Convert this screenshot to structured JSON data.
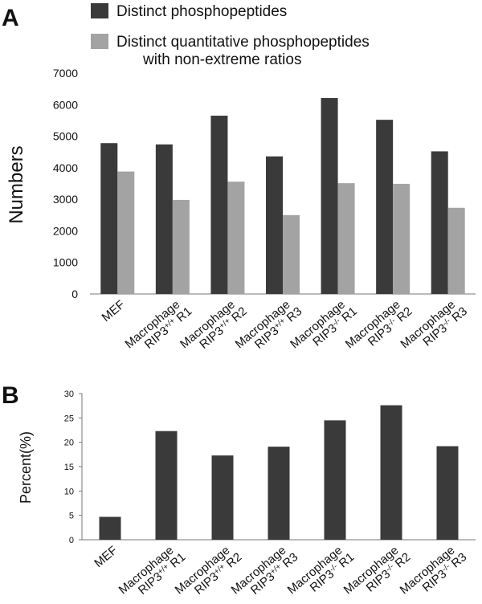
{
  "chart_data": [
    {
      "panel": "A",
      "type": "bar",
      "ylabel": "Numbers",
      "ylim": [
        0,
        7000
      ],
      "yticks": [
        0,
        1000,
        2000,
        3000,
        4000,
        5000,
        6000,
        7000
      ],
      "legend_position": "top",
      "grid": false,
      "categories": [
        {
          "line1": "MEF",
          "line2": "",
          "sup": "",
          "rep": ""
        },
        {
          "line1": "Macrophage",
          "line2": "RIP3",
          "sup": "+/+",
          "rep": " R1"
        },
        {
          "line1": "Macrophage",
          "line2": "RIP3",
          "sup": "+/+",
          "rep": " R2"
        },
        {
          "line1": "Macrophage",
          "line2": "RIP3",
          "sup": "+/+",
          "rep": " R3"
        },
        {
          "line1": "Macrophage",
          "line2": "RIP3",
          "sup": "-/-",
          "rep": " R1"
        },
        {
          "line1": "Macrophage",
          "line2": "RIP3",
          "sup": "-/-",
          "rep": " R2"
        },
        {
          "line1": "Macrophage",
          "line2": "RIP3",
          "sup": "-/-",
          "rep": " R3"
        }
      ],
      "series": [
        {
          "name": "Distinct phosphopeptides",
          "color": "#3a3a3a",
          "values": [
            4780,
            4740,
            5650,
            4360,
            6210,
            5520,
            4520
          ]
        },
        {
          "name_line1": "Distinct quantitative phosphopeptides",
          "name_line2": "with non-extreme ratios",
          "color": "#a3a3a3",
          "values": [
            3880,
            2980,
            3560,
            2500,
            3510,
            3490,
            2730
          ]
        }
      ]
    },
    {
      "panel": "B",
      "type": "bar",
      "ylabel": "Percent(%)",
      "ylim": [
        0,
        30
      ],
      "yticks": [
        0,
        5,
        10,
        15,
        20,
        25,
        30
      ],
      "grid": false,
      "categories": [
        {
          "line1": "MEF",
          "line2": "",
          "sup": "",
          "rep": ""
        },
        {
          "line1": "Macrophage",
          "line2": "RIP3",
          "sup": "+/+",
          "rep": " R1"
        },
        {
          "line1": "Macrophage",
          "line2": "RIP3",
          "sup": "+/+",
          "rep": " R2"
        },
        {
          "line1": "Macrophage",
          "line2": "RIP3",
          "sup": "+/+",
          "rep": " R3"
        },
        {
          "line1": "Macrophage",
          "line2": "RIP3",
          "sup": "-/-",
          "rep": " R1"
        },
        {
          "line1": "Macrophage",
          "line2": "RIP3",
          "sup": "-/-",
          "rep": " R2"
        },
        {
          "line1": "Macrophage",
          "line2": "RIP3",
          "sup": "-/-",
          "rep": " R3"
        }
      ],
      "series": [
        {
          "color": "#3a3a3a",
          "values": [
            4.7,
            22.3,
            17.3,
            19.1,
            24.5,
            27.6,
            19.2
          ]
        }
      ]
    }
  ]
}
